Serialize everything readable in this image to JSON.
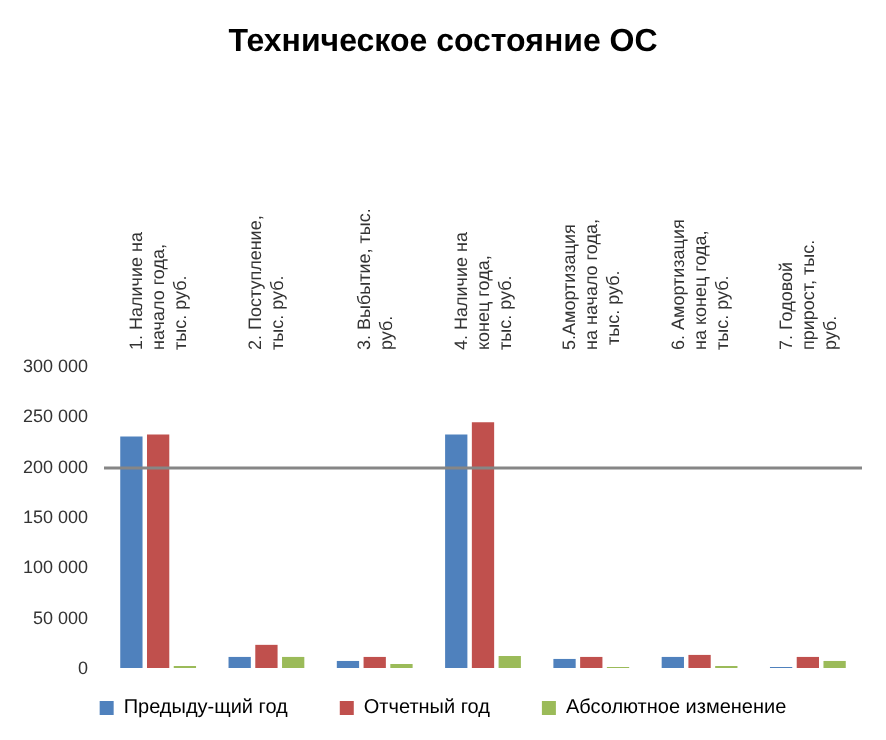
{
  "chart_data": {
    "type": "bar",
    "title": "Техническое состояние ОС",
    "categories": [
      "1. Наличие на начало года, тыс. руб.",
      "2. Поступление, тыс. руб.",
      "3. Выбытие, тыс. руб.",
      "4. Наличие на конец года, тыс. руб.",
      "5.Амортизация на начало года, тыс. руб.",
      "6. Амортизация на конец года, тыс. руб.",
      "7. Годовой прирост, тыс. руб."
    ],
    "series": [
      {
        "name": "Предыду-щий год",
        "color": "#4f81bd",
        "values": [
          230000,
          11000,
          7000,
          232000,
          9000,
          11000,
          1000
        ]
      },
      {
        "name": "Отчетный год",
        "color": "#c0504d",
        "values": [
          232000,
          23000,
          11000,
          244000,
          11000,
          13000,
          11000
        ]
      },
      {
        "name": "Абсолютное изменение",
        "color": "#9bbb59",
        "values": [
          2000,
          11000,
          4000,
          12000,
          1000,
          2000,
          7000
        ]
      }
    ],
    "ylim": [
      0,
      300000
    ],
    "yticks": [
      {
        "value": 0,
        "label": "0"
      },
      {
        "value": 50000,
        "label": "50 000"
      },
      {
        "value": 100000,
        "label": "100 000"
      },
      {
        "value": 150000,
        "label": "150 000"
      },
      {
        "value": 200000,
        "label": "200 000"
      },
      {
        "value": 250000,
        "label": "250 000"
      },
      {
        "value": 300000,
        "label": "300 000"
      }
    ],
    "ref_lines": [
      {
        "axis": "y",
        "value": 200000,
        "color": "#868686"
      }
    ],
    "grid": false,
    "legend": "bottom"
  }
}
